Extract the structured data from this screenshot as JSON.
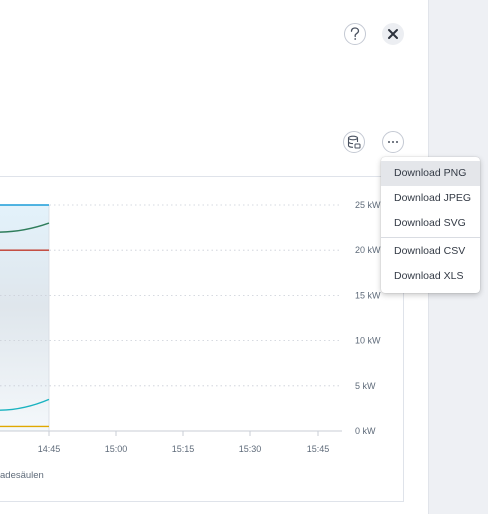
{
  "header": {
    "help_icon": "question-mark-icon",
    "close_icon": "close-x-icon"
  },
  "toolbar": {
    "database_icon": "database-icon",
    "more_icon": "ellipsis-icon"
  },
  "export_menu": {
    "items": [
      {
        "label": "Download PNG",
        "active": true
      },
      {
        "label": "Download JPEG"
      },
      {
        "label": "Download SVG"
      },
      {
        "label": "Download CSV"
      },
      {
        "label": "Download XLS"
      }
    ]
  },
  "chart_data": {
    "type": "line",
    "x_tick_labels": [
      "14:45",
      "15:00",
      "15:15",
      "15:30",
      "15:45"
    ],
    "y_tick_labels": [
      "0 kW",
      "5 kW",
      "10 kW",
      "15 kW",
      "20 kW",
      "25 kW"
    ],
    "ylim": [
      0,
      25
    ],
    "grid": true,
    "series": [
      {
        "color": "#1a9cd8",
        "y_start": 25,
        "y_end": 25
      },
      {
        "color": "#2e7d5b",
        "y_start": 22,
        "y_end": 23
      },
      {
        "color": "#c0392b",
        "y_start": 20,
        "y_end": 20
      },
      {
        "color": "#1ab3c0",
        "y_start": 2.3,
        "y_end": 3.5
      },
      {
        "color": "#e0a800",
        "y_start": 0.5,
        "y_end": 0.5
      }
    ],
    "legend_text": "adesäulen",
    "colors": {
      "panel": "#ffffff",
      "grid": "#c9ced6",
      "shade": "#e3f2fb"
    }
  }
}
